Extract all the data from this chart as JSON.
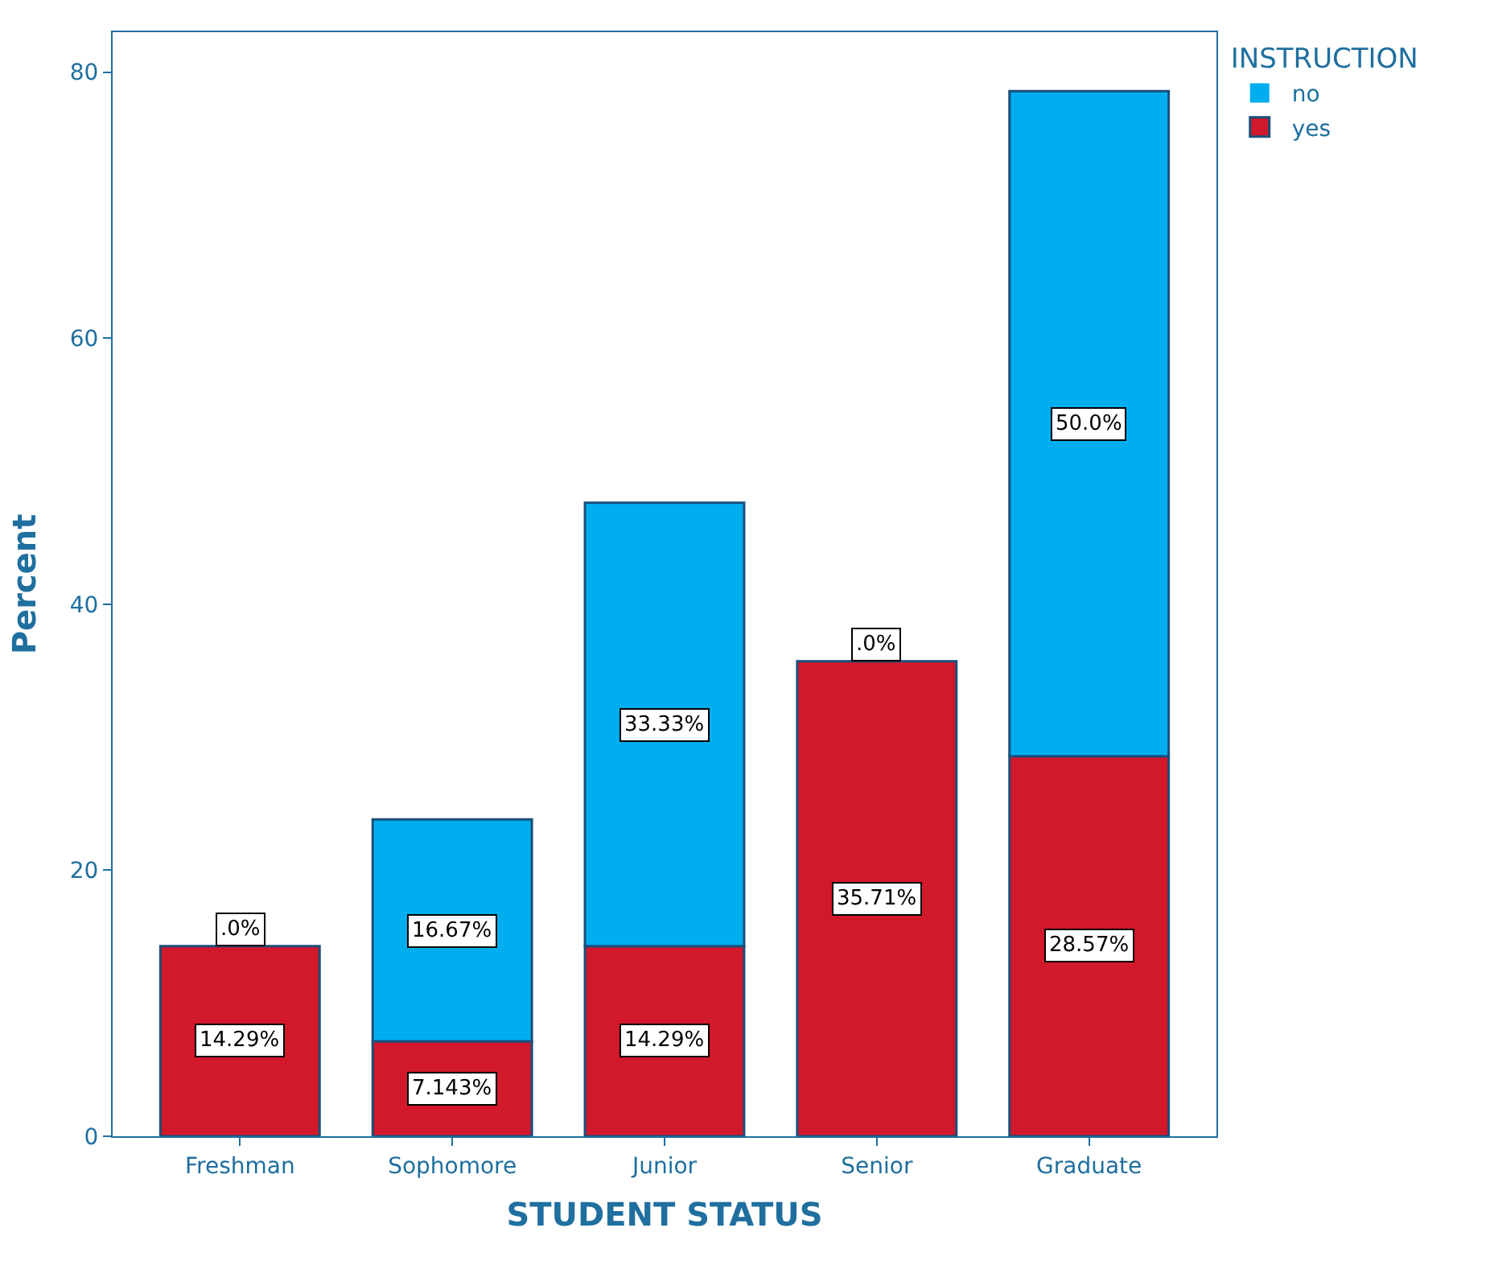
{
  "chart_data": {
    "type": "bar",
    "stacked": true,
    "xlabel": "STUDENT STATUS",
    "ylabel": "Percent",
    "legend_title": "INSTRUCTION",
    "legend": "top right",
    "categories": [
      "Freshman",
      "Sophomore",
      "Junior",
      "Senior",
      "Graduate"
    ],
    "ylim": [
      0,
      83
    ],
    "yticks": [
      0,
      20,
      40,
      60,
      80
    ],
    "series": [
      {
        "name": "yes",
        "color": "#d2182b",
        "values": [
          14.29,
          7.143,
          14.29,
          35.71,
          28.57
        ],
        "value_labels": [
          "14.29%",
          "7.143%",
          "14.29%",
          "35.71%",
          "28.57%"
        ]
      },
      {
        "name": "no",
        "color": "#00aeef",
        "values": [
          0,
          16.67,
          33.33,
          0,
          50.0
        ],
        "value_labels": [
          ".0%",
          "16.67%",
          "33.33%",
          ".0%",
          "50.0%"
        ]
      }
    ]
  }
}
